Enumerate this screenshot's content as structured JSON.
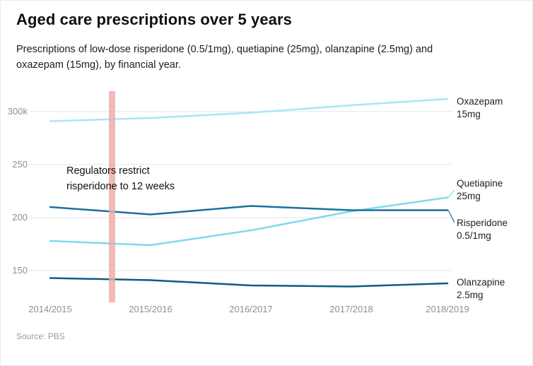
{
  "chart_data": {
    "type": "line",
    "title": "Aged care prescriptions over 5 years",
    "subtitle": "Prescriptions of low-dose risperidone (0.5/1mg), quetiapine (25mg), olanzapine (2.5mg) and oxazepam (15mg), by financial year.",
    "source": "Source: PBS",
    "value_unit": "thousands",
    "categories": [
      "2014/2015",
      "2015/2016",
      "2016/2017",
      "2017/2018",
      "2018/2019"
    ],
    "yticks": [
      {
        "label": "300k",
        "value": 300
      },
      {
        "label": "250",
        "value": 250
      },
      {
        "label": "200",
        "value": 200
      },
      {
        "label": "150",
        "value": 150
      }
    ],
    "ylim": [
      125,
      320
    ],
    "grid": true,
    "legend_position": "right-labels",
    "series": [
      {
        "name": "Oxazepam 15mg",
        "label_lines": [
          "Oxazepam",
          "15mg"
        ],
        "color": "#a9e6f3",
        "values": [
          291,
          294,
          299,
          306,
          312
        ]
      },
      {
        "name": "Quetiapine 25mg",
        "label_lines": [
          "Quetiapine",
          "25mg"
        ],
        "color": "#7edaee",
        "values": [
          178,
          174,
          188,
          206,
          219
        ]
      },
      {
        "name": "Risperidone 0.5/1mg",
        "label_lines": [
          "Risperidone",
          "0.5/1mg"
        ],
        "color": "#1e6f9e",
        "values": [
          210,
          203,
          211,
          207,
          207
        ]
      },
      {
        "name": "Olanzapine 2.5mg",
        "label_lines": [
          "Olanzapine",
          "2.5mg"
        ],
        "color": "#0f5b86",
        "values": [
          143,
          141,
          136,
          135,
          138
        ]
      }
    ],
    "annotation": {
      "text_lines": [
        "Regulators restrict",
        "risperidone to 12 weeks"
      ],
      "band_color": "#eca9a5",
      "band_between": [
        "2014/2015",
        "2015/2016"
      ]
    }
  }
}
